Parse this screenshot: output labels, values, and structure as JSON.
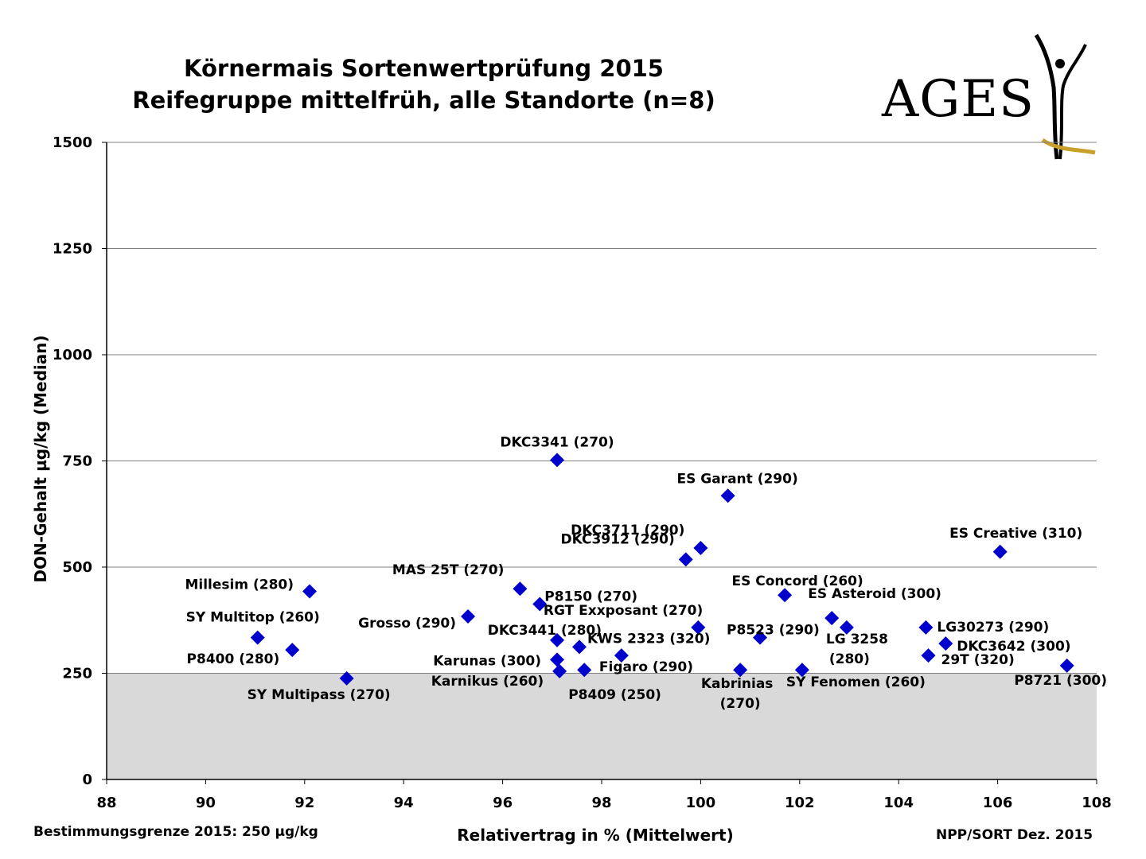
{
  "header": {
    "title_line1": "Körnermais Sortenwertprüfung 2015",
    "title_line2": "Reifegruppe mittelfrüh, alle Standorte (n=8)",
    "logo_text": "AGES"
  },
  "footer": {
    "left": "Bestimmungsgrenze 2015: 250 µg/kg",
    "right": "NPP/SORT Dez. 2015"
  },
  "colors": {
    "marker": "#0000cc",
    "shaded_region": "#d9d9d9",
    "grid": "#808080",
    "logo_gold": "#c8a02a"
  },
  "chart_data": {
    "type": "scatter",
    "xlabel": "Relativertrag in % (Mittelwert)",
    "ylabel": "DON-Gehalt µg/kg (Median)",
    "xlim": [
      88,
      108
    ],
    "ylim": [
      0,
      1500
    ],
    "xticks": [
      88,
      90,
      92,
      94,
      96,
      98,
      100,
      102,
      104,
      106,
      108
    ],
    "yticks": [
      0,
      250,
      500,
      750,
      1000,
      1250,
      1500
    ],
    "grid": "horizontal",
    "shaded_below_y": 250,
    "marker": "diamond",
    "points": [
      {
        "label": "DKC3341 (270)",
        "x": 97.1,
        "y": 752
      },
      {
        "label": "ES Garant (290)",
        "x": 100.55,
        "y": 668
      },
      {
        "label": "DKC3711 (290)",
        "x": 100.0,
        "y": 545
      },
      {
        "label": "DKC3912 (290)",
        "x": 99.7,
        "y": 518
      },
      {
        "label": "ES Creative (310)",
        "x": 106.05,
        "y": 536
      },
      {
        "label": "Millesim (280)",
        "x": 92.1,
        "y": 443
      },
      {
        "label": "MAS 25T (270)",
        "x": 96.35,
        "y": 449
      },
      {
        "label": "P8150 (270)",
        "x": 96.75,
        "y": 413
      },
      {
        "label": "ES Concord (260)",
        "x": 101.7,
        "y": 434
      },
      {
        "label": "ES Asteroid (300)",
        "x": 102.65,
        "y": 380
      },
      {
        "label": "SY Multitop (260)",
        "x": 91.05,
        "y": 334
      },
      {
        "label": "Grosso (290)",
        "x": 95.3,
        "y": 384
      },
      {
        "label": "RGT Exxposant (270)",
        "x": 99.95,
        "y": 358
      },
      {
        "label": "P8523 (290)",
        "x": 101.2,
        "y": 334
      },
      {
        "label": "LG 3258 (280)",
        "x": 102.95,
        "y": 358
      },
      {
        "label": "LG30273 (290)",
        "x": 104.55,
        "y": 358
      },
      {
        "label": "DKC3642 (300)",
        "x": 104.95,
        "y": 320
      },
      {
        "label": "29T (320)",
        "x": 104.6,
        "y": 292
      },
      {
        "label": "P8400 (280)",
        "x": 91.75,
        "y": 305
      },
      {
        "label": "DKC3441 (280)",
        "x": 97.1,
        "y": 328
      },
      {
        "label": "KWS 2323 (320)",
        "x": 97.55,
        "y": 312
      },
      {
        "label": "Karunas (300)",
        "x": 97.1,
        "y": 282
      },
      {
        "label": "Figaro (290)",
        "x": 98.4,
        "y": 292
      },
      {
        "label": "Karnikus (260)",
        "x": 97.15,
        "y": 255
      },
      {
        "label": "P8409 (250)",
        "x": 97.65,
        "y": 258
      },
      {
        "label": "Kabrinias (270)",
        "x": 100.8,
        "y": 258
      },
      {
        "label": "SY Fenomen (260)",
        "x": 102.05,
        "y": 258
      },
      {
        "label": "P8721 (300)",
        "x": 107.4,
        "y": 268
      },
      {
        "label": "SY Multipass (270)",
        "x": 92.85,
        "y": 238
      }
    ]
  }
}
